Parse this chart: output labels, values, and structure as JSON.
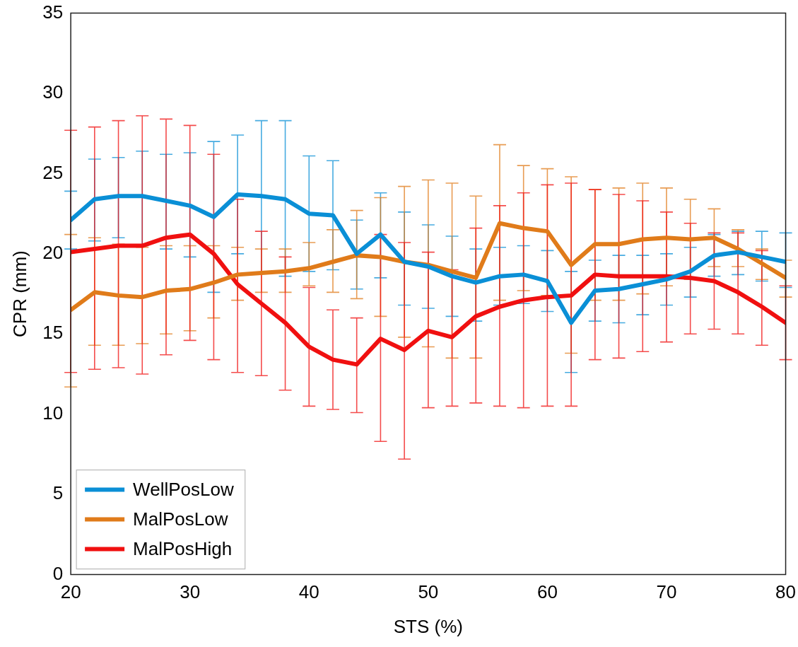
{
  "chart_data": {
    "type": "line",
    "xlabel": "STS (%)",
    "ylabel": "CPR (mm)",
    "x": [
      20,
      22,
      24,
      26,
      28,
      30,
      32,
      34,
      36,
      38,
      40,
      42,
      44,
      46,
      48,
      50,
      52,
      54,
      56,
      58,
      60,
      62,
      64,
      66,
      68,
      70,
      72,
      74,
      76,
      78,
      80
    ],
    "xlim": [
      20,
      80
    ],
    "xticks": [
      20,
      30,
      40,
      50,
      60,
      70,
      80
    ],
    "ylim": [
      0,
      35
    ],
    "yticks": [
      0,
      5,
      10,
      15,
      20,
      25,
      30,
      35
    ],
    "grid": false,
    "legend": "bottom left",
    "marker": "none",
    "line_style": "solid",
    "series": [
      {
        "name": "WellPosLow",
        "color": "#0a8fd6",
        "values": [
          22.1,
          23.4,
          23.6,
          23.6,
          23.3,
          23.0,
          22.3,
          23.7,
          23.6,
          23.4,
          22.5,
          22.4,
          20.0,
          21.2,
          19.5,
          19.2,
          18.6,
          18.2,
          18.6,
          18.7,
          18.3,
          15.7,
          17.7,
          17.8,
          18.1,
          18.4,
          18.9,
          19.9,
          20.1,
          19.8,
          19.5
        ],
        "errors": [
          [
            20.3,
            23.9
          ],
          [
            20.8,
            25.9
          ],
          [
            21.0,
            26.0
          ],
          [
            20.5,
            26.4
          ],
          [
            20.3,
            26.2
          ],
          [
            19.8,
            26.3
          ],
          [
            17.6,
            27.0
          ],
          [
            20.0,
            27.4
          ],
          [
            18.8,
            28.3
          ],
          [
            18.6,
            28.3
          ],
          [
            18.9,
            26.1
          ],
          [
            19.0,
            25.8
          ],
          [
            17.8,
            22.1
          ],
          [
            18.5,
            23.8
          ],
          [
            16.8,
            22.6
          ],
          [
            16.6,
            21.8
          ],
          [
            16.1,
            21.1
          ],
          [
            15.8,
            20.3
          ],
          [
            16.8,
            20.4
          ],
          [
            16.9,
            20.5
          ],
          [
            16.4,
            20.2
          ],
          [
            12.6,
            18.9
          ],
          [
            15.8,
            19.6
          ],
          [
            15.7,
            19.9
          ],
          [
            16.2,
            19.9
          ],
          [
            16.8,
            20.0
          ],
          [
            17.3,
            20.4
          ],
          [
            18.6,
            21.2
          ],
          [
            18.7,
            21.4
          ],
          [
            18.3,
            21.4
          ],
          [
            17.9,
            21.3
          ]
        ]
      },
      {
        "name": "MalPosLow",
        "color": "#e07b1a",
        "values": [
          16.5,
          17.6,
          17.4,
          17.3,
          17.7,
          17.8,
          18.2,
          18.7,
          18.8,
          18.9,
          19.1,
          19.5,
          19.9,
          19.8,
          19.5,
          19.3,
          18.9,
          18.5,
          21.9,
          21.6,
          21.4,
          19.3,
          20.6,
          20.6,
          20.9,
          21.0,
          20.9,
          21.0,
          20.3,
          19.4,
          18.5
        ],
        "errors": [
          [
            11.7,
            21.2
          ],
          [
            14.3,
            21.0
          ],
          [
            14.3,
            20.6
          ],
          [
            14.4,
            20.4
          ],
          [
            15.0,
            20.5
          ],
          [
            15.2,
            20.5
          ],
          [
            16.0,
            20.5
          ],
          [
            17.1,
            20.4
          ],
          [
            17.6,
            20.3
          ],
          [
            17.6,
            20.3
          ],
          [
            18.0,
            20.7
          ],
          [
            17.6,
            21.5
          ],
          [
            17.2,
            22.7
          ],
          [
            16.1,
            23.5
          ],
          [
            14.8,
            24.2
          ],
          [
            14.2,
            24.6
          ],
          [
            13.5,
            24.4
          ],
          [
            13.5,
            23.6
          ],
          [
            17.1,
            26.8
          ],
          [
            17.7,
            25.5
          ],
          [
            17.4,
            25.3
          ],
          [
            13.8,
            24.8
          ],
          [
            17.1,
            24.0
          ],
          [
            17.1,
            24.1
          ],
          [
            17.5,
            24.4
          ],
          [
            18.0,
            24.1
          ],
          [
            18.4,
            23.4
          ],
          [
            19.2,
            22.8
          ],
          [
            19.2,
            21.5
          ],
          [
            18.4,
            20.3
          ],
          [
            17.3,
            19.6
          ]
        ]
      },
      {
        "name": "MalPosHigh",
        "color": "#f01010",
        "values": [
          20.1,
          20.3,
          20.5,
          20.5,
          21.0,
          21.2,
          20.0,
          18.1,
          16.9,
          15.7,
          14.2,
          13.4,
          13.1,
          14.7,
          14.0,
          15.2,
          14.8,
          16.1,
          16.7,
          17.1,
          17.3,
          17.4,
          18.7,
          18.6,
          18.6,
          18.6,
          18.5,
          18.3,
          17.6,
          16.7,
          15.7
        ],
        "errors": [
          [
            12.6,
            27.7
          ],
          [
            12.8,
            27.9
          ],
          [
            12.9,
            28.3
          ],
          [
            12.5,
            28.6
          ],
          [
            13.7,
            28.4
          ],
          [
            14.6,
            28.0
          ],
          [
            13.4,
            26.2
          ],
          [
            12.6,
            23.4
          ],
          [
            12.4,
            21.4
          ],
          [
            11.5,
            19.8
          ],
          [
            10.5,
            17.9
          ],
          [
            10.3,
            16.5
          ],
          [
            10.1,
            16.0
          ],
          [
            8.3,
            21.2
          ],
          [
            7.2,
            20.7
          ],
          [
            10.4,
            20.1
          ],
          [
            10.5,
            19.0
          ],
          [
            10.7,
            21.6
          ],
          [
            10.5,
            23.0
          ],
          [
            10.4,
            23.8
          ],
          [
            10.5,
            24.3
          ],
          [
            10.5,
            24.4
          ],
          [
            13.4,
            24.0
          ],
          [
            13.5,
            23.7
          ],
          [
            13.9,
            23.3
          ],
          [
            14.5,
            22.6
          ],
          [
            15.0,
            21.9
          ],
          [
            15.3,
            21.3
          ],
          [
            15.0,
            21.3
          ],
          [
            14.3,
            20.2
          ],
          [
            13.4,
            18.0
          ]
        ]
      }
    ]
  }
}
